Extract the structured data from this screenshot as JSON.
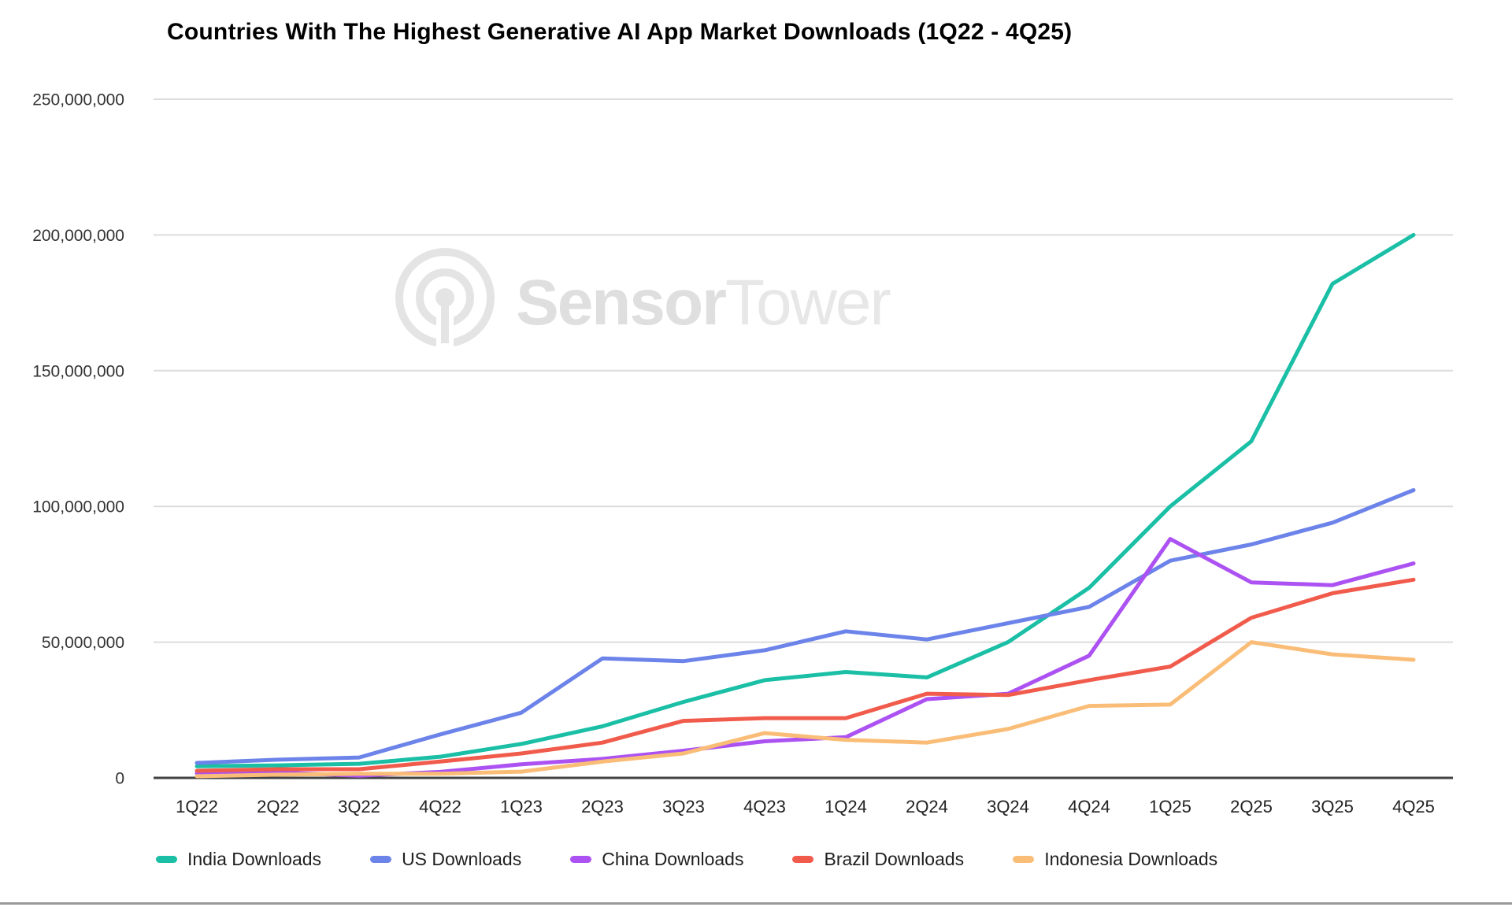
{
  "page": {
    "background": "#ffffff",
    "bottom_rule_color": "#999999"
  },
  "watermark": {
    "brand_bold": "Sensor",
    "brand_light": "Tower",
    "logo_color": "#e4e4e4",
    "text_bold_color": "#dfdfdf",
    "text_light_color": "#e7e7e7"
  },
  "chart_data": {
    "type": "line",
    "title": "Countries With The Highest Generative AI App Market Downloads (1Q22 - 4Q25)",
    "categories": [
      "1Q22",
      "2Q22",
      "3Q22",
      "4Q22",
      "1Q23",
      "2Q23",
      "3Q23",
      "4Q23",
      "1Q24",
      "2Q24",
      "3Q24",
      "4Q24",
      "1Q25",
      "2Q25",
      "3Q25",
      "4Q25"
    ],
    "series": [
      {
        "name": "India Downloads",
        "color": "#1ABFA6",
        "values": [
          4300000,
          4600000,
          5200000,
          7800000,
          12500000,
          19000000,
          28000000,
          36000000,
          39000000,
          37000000,
          50000000,
          70000000,
          100000000,
          124000000,
          182000000,
          200000000
        ]
      },
      {
        "name": "US Downloads",
        "color": "#6C83E9",
        "values": [
          5500000,
          6700000,
          7500000,
          16000000,
          24000000,
          44000000,
          43000000,
          47000000,
          54000000,
          51000000,
          57000000,
          63000000,
          80000000,
          86000000,
          94000000,
          106000000
        ]
      },
      {
        "name": "China Downloads",
        "color": "#AC52F2",
        "values": [
          1700000,
          2000000,
          800000,
          2200000,
          5000000,
          7000000,
          10000000,
          13500000,
          15000000,
          29000000,
          31000000,
          45000000,
          88000000,
          72000000,
          71000000,
          79000000
        ]
      },
      {
        "name": "Brazil Downloads",
        "color": "#F15B4C",
        "values": [
          2600000,
          3200000,
          3200000,
          6000000,
          9000000,
          13000000,
          21000000,
          22000000,
          22000000,
          31000000,
          30500000,
          36000000,
          41000000,
          59000000,
          68000000,
          73000000
        ]
      },
      {
        "name": "Indonesia Downloads",
        "color": "#FABD77",
        "values": [
          600000,
          1200000,
          1500000,
          1500000,
          2300000,
          6000000,
          9000000,
          16500000,
          14000000,
          13000000,
          18000000,
          26500000,
          27000000,
          50000000,
          45500000,
          43500000
        ]
      }
    ],
    "y_axis": {
      "min": 0,
      "max": 250000000,
      "tick_values": [
        0,
        50000000,
        100000000,
        150000000,
        200000000,
        250000000
      ],
      "tick_labels": [
        "0",
        "50,000,000",
        "100,000,000",
        "150,000,000",
        "200,000,000",
        "250,000,000"
      ]
    },
    "xlabel": "",
    "ylabel": "",
    "grid": true,
    "legend_position": "bottom",
    "grid_color": "#dcdcdc",
    "axis_line_color": "#424242",
    "axis_label_color": "#333333"
  }
}
